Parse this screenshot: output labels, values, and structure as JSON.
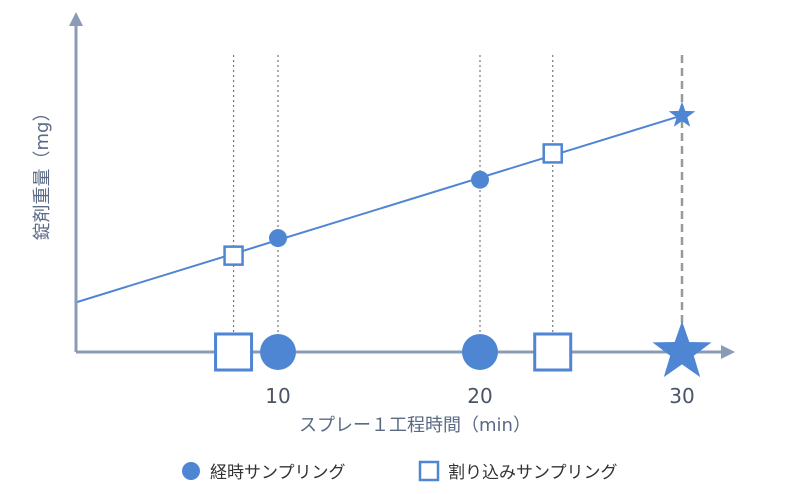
{
  "chart_data": {
    "type": "scatter",
    "xlabel": "スプレー１工程時間（min）",
    "ylabel": "錠剤重量（mg）",
    "x_ticks": [
      10,
      20,
      30
    ],
    "xlim": [
      0,
      33
    ],
    "ylim": [
      0,
      10
    ],
    "trend_line": {
      "x": [
        0,
        30
      ],
      "y": [
        1.7,
        8.1
      ]
    },
    "series": [
      {
        "name": "経時サンプリング",
        "marker": "circle",
        "x": [
          10,
          20
        ],
        "y": [
          3.9,
          5.9
        ]
      },
      {
        "name": "割り込みサンプリング",
        "marker": "square",
        "x": [
          7.8,
          23.6
        ],
        "y": [
          3.3,
          6.8
        ]
      },
      {
        "name": "",
        "marker": "star",
        "x": [
          30
        ],
        "y": [
          8.1
        ]
      }
    ]
  },
  "colors": {
    "axis": "#8a9bb5",
    "series": "#4f86d4",
    "guide": "#777777",
    "dashed": "#999999"
  }
}
